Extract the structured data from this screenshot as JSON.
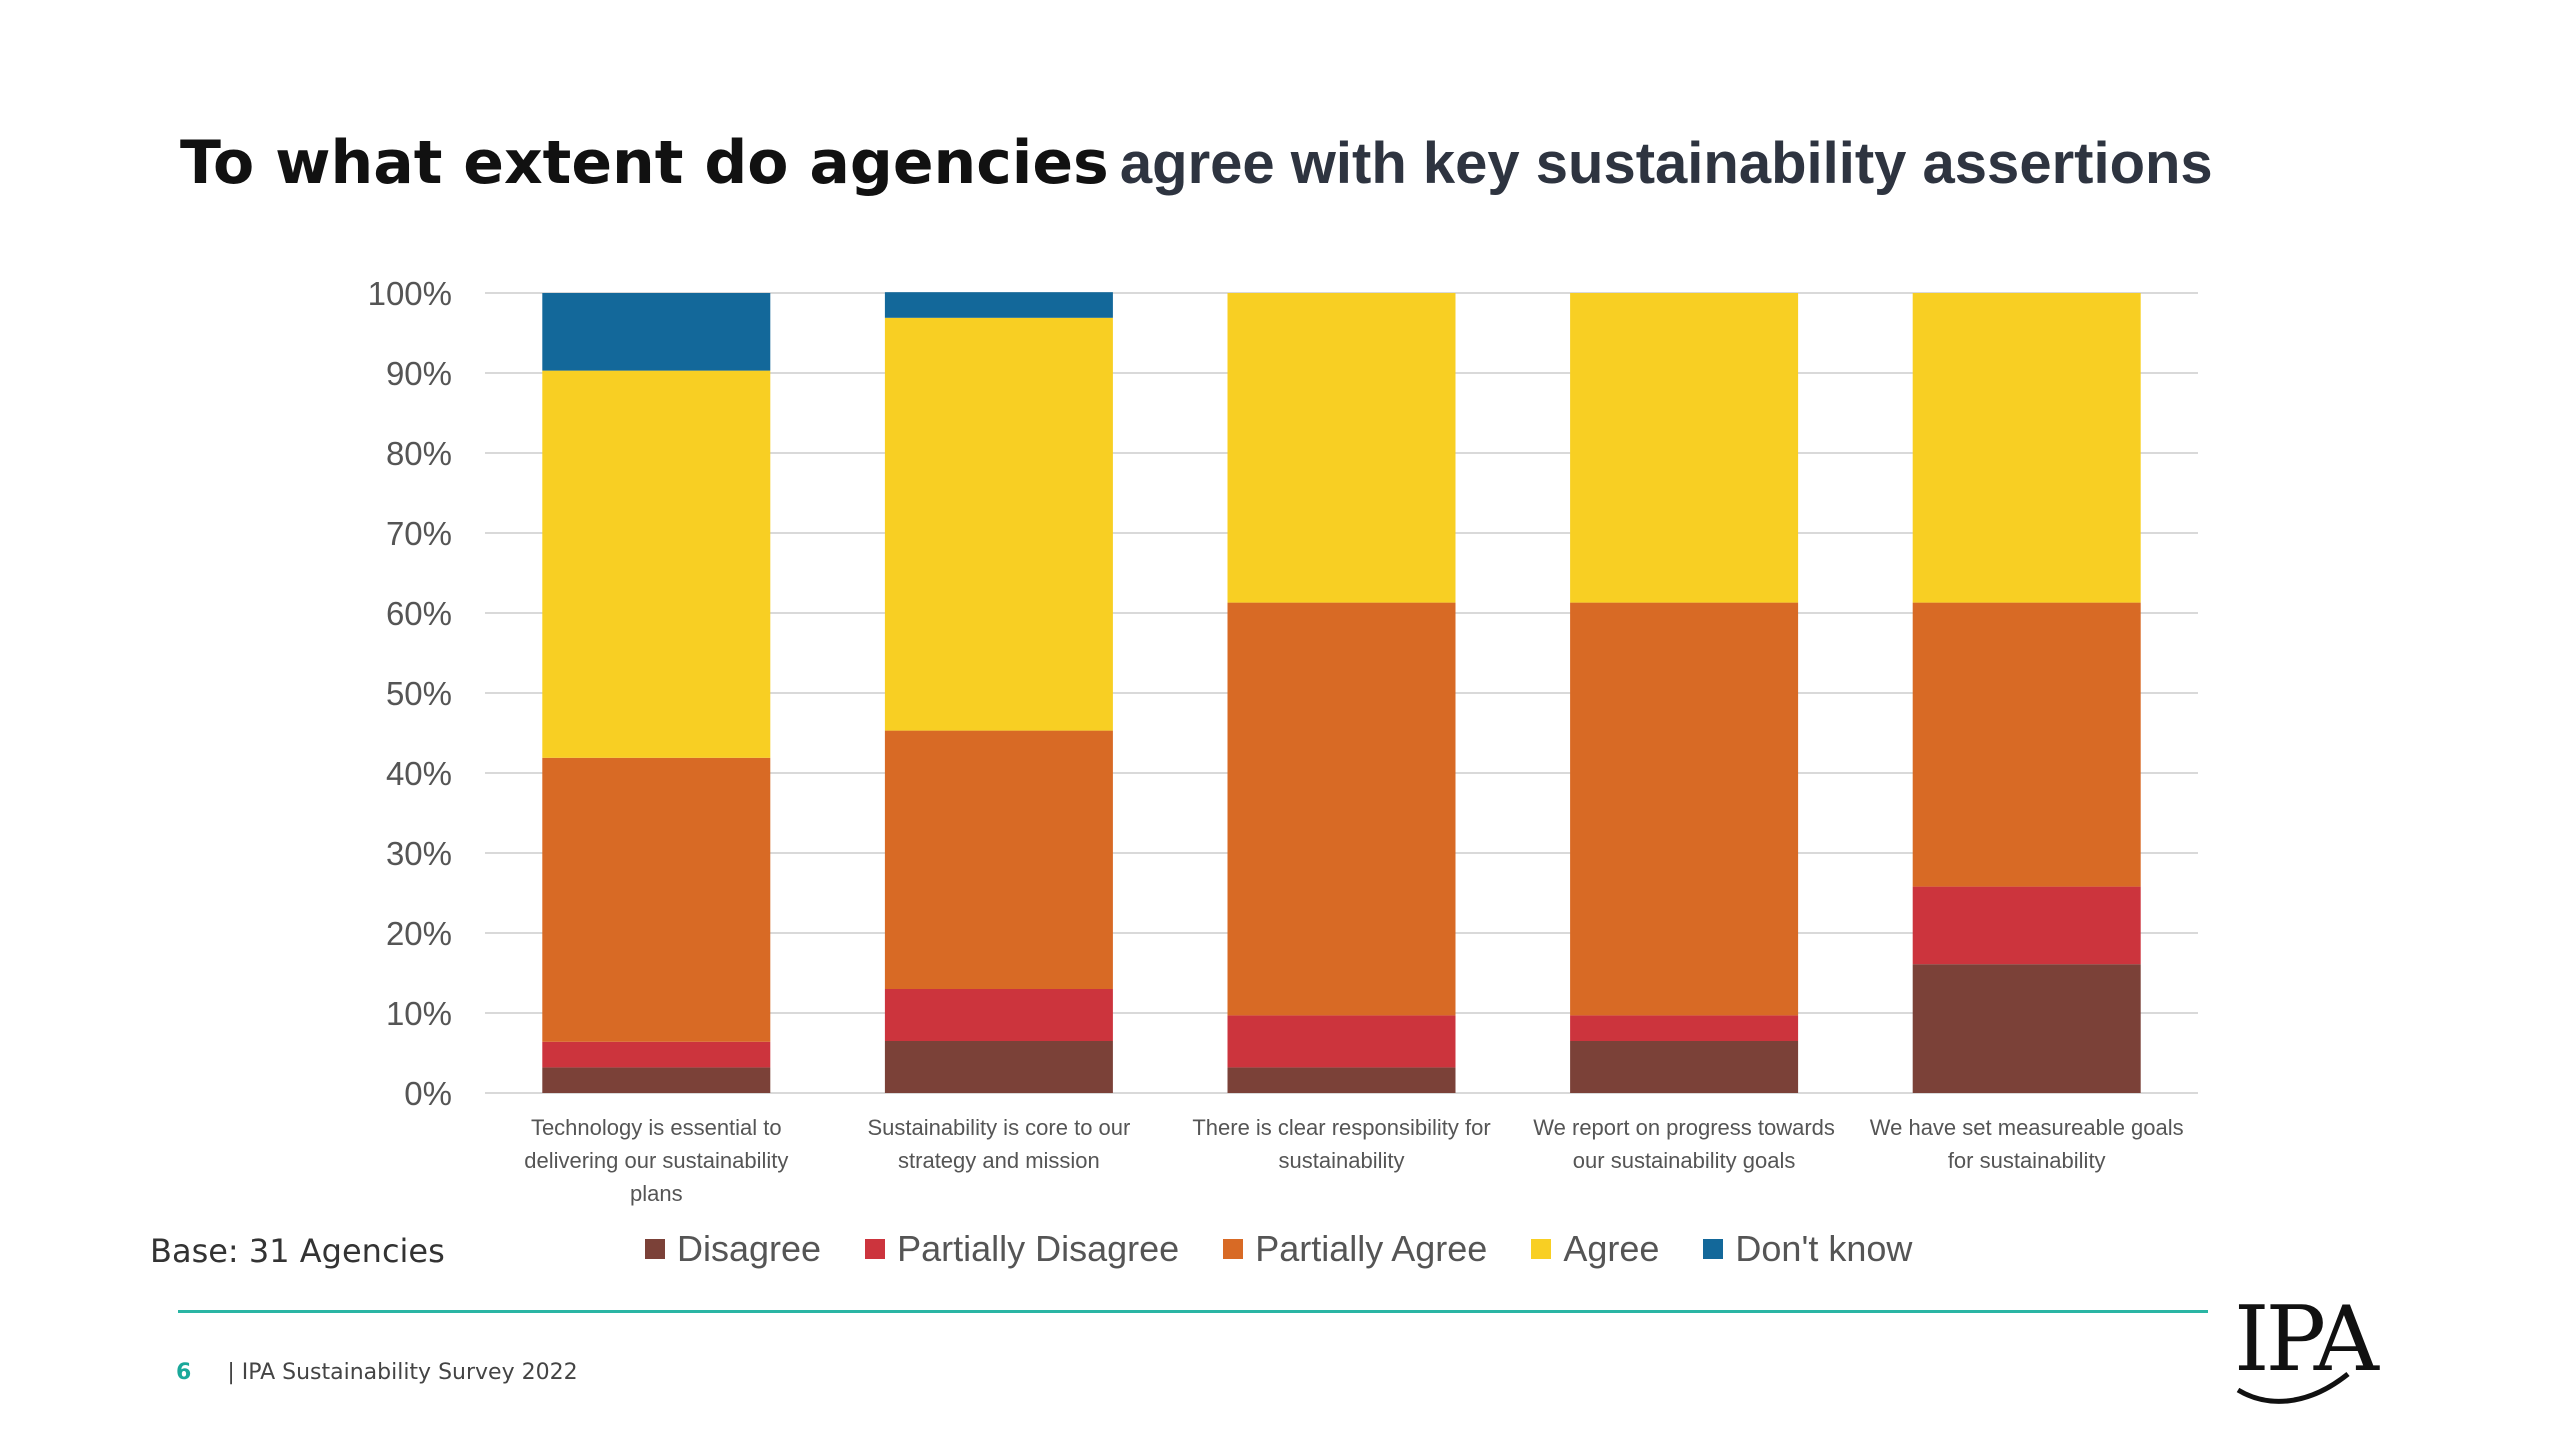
{
  "title": {
    "bold_part": "To what extent do agencies",
    "rest_part": "agree with key sustainability assertions"
  },
  "chart_data": {
    "type": "bar",
    "stacked": true,
    "categories": [
      "Technology is essential to delivering our sustainability plans",
      "Sustainability is core to our strategy and mission",
      "There is clear responsibility for sustainability",
      "We report on progress towards our sustainability goals",
      "We have set measureable goals for sustainability"
    ],
    "category_lines": [
      [
        "Technology is essential to",
        "delivering our sustainability",
        "plans"
      ],
      [
        "Sustainability is core to our",
        "strategy and mission"
      ],
      [
        "There is clear responsibility for",
        "sustainability"
      ],
      [
        "We report on progress towards",
        "our sustainability goals"
      ],
      [
        "We have set measureable goals",
        "for sustainability"
      ]
    ],
    "series": [
      {
        "name": "Disagree",
        "color": "#7b4138",
        "values": [
          3.2,
          6.5,
          3.2,
          6.5,
          16.1
        ]
      },
      {
        "name": "Partially Disagree",
        "color": "#cc343d",
        "values": [
          3.2,
          6.5,
          6.5,
          3.2,
          9.7
        ]
      },
      {
        "name": "Partially Agree",
        "color": "#d86a25",
        "values": [
          35.5,
          32.3,
          51.6,
          51.6,
          35.5
        ]
      },
      {
        "name": "Agree",
        "color": "#f8cf23",
        "values": [
          48.4,
          51.6,
          38.7,
          38.7,
          38.7
        ]
      },
      {
        "name": "Don't know",
        "color": "#13689a",
        "values": [
          9.7,
          3.2,
          0,
          0,
          0
        ]
      }
    ],
    "y_ticks": [
      "0%",
      "10%",
      "20%",
      "30%",
      "40%",
      "50%",
      "60%",
      "70%",
      "80%",
      "90%",
      "100%"
    ],
    "ylim": [
      0,
      100
    ],
    "grid": true,
    "legend_position": "bottom"
  },
  "base_note": "Base: 31 Agencies",
  "footer": {
    "page_number": "6",
    "text": "| IPA Sustainability Survey 2022"
  },
  "logo": {
    "text": "IPA"
  }
}
